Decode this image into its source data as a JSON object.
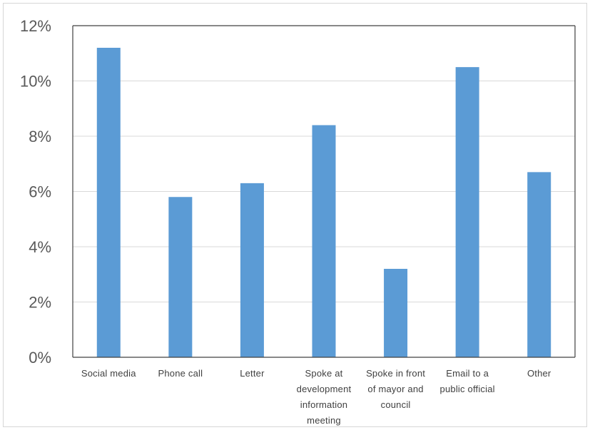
{
  "chart_data": {
    "type": "bar",
    "title": "",
    "xlabel": "",
    "ylabel": "",
    "categories": [
      "Social media",
      "Phone call",
      "Letter",
      "Spoke at development information meeting",
      "Spoke in front of mayor and council",
      "Email to a public official",
      "Other"
    ],
    "category_label_lines": [
      [
        "Social media"
      ],
      [
        "Phone call"
      ],
      [
        "Letter"
      ],
      [
        "Spoke at",
        "development",
        "information",
        "meeting"
      ],
      [
        "Spoke in front",
        "of mayor and",
        "council"
      ],
      [
        "Email to a",
        "public official"
      ],
      [
        "Other"
      ]
    ],
    "values": [
      11.2,
      5.8,
      6.3,
      8.4,
      3.2,
      10.5,
      6.7
    ],
    "ylim": [
      0,
      12
    ],
    "yticks": [
      0,
      2,
      4,
      6,
      8,
      10,
      12
    ],
    "ytick_labels": [
      "0%",
      "2%",
      "4%",
      "6%",
      "8%",
      "10%",
      "12%"
    ],
    "grid": true,
    "legend": "none",
    "colors": {
      "bar": "#5b9bd5",
      "grid": "#d9d9d9",
      "axis": "#404040"
    }
  }
}
